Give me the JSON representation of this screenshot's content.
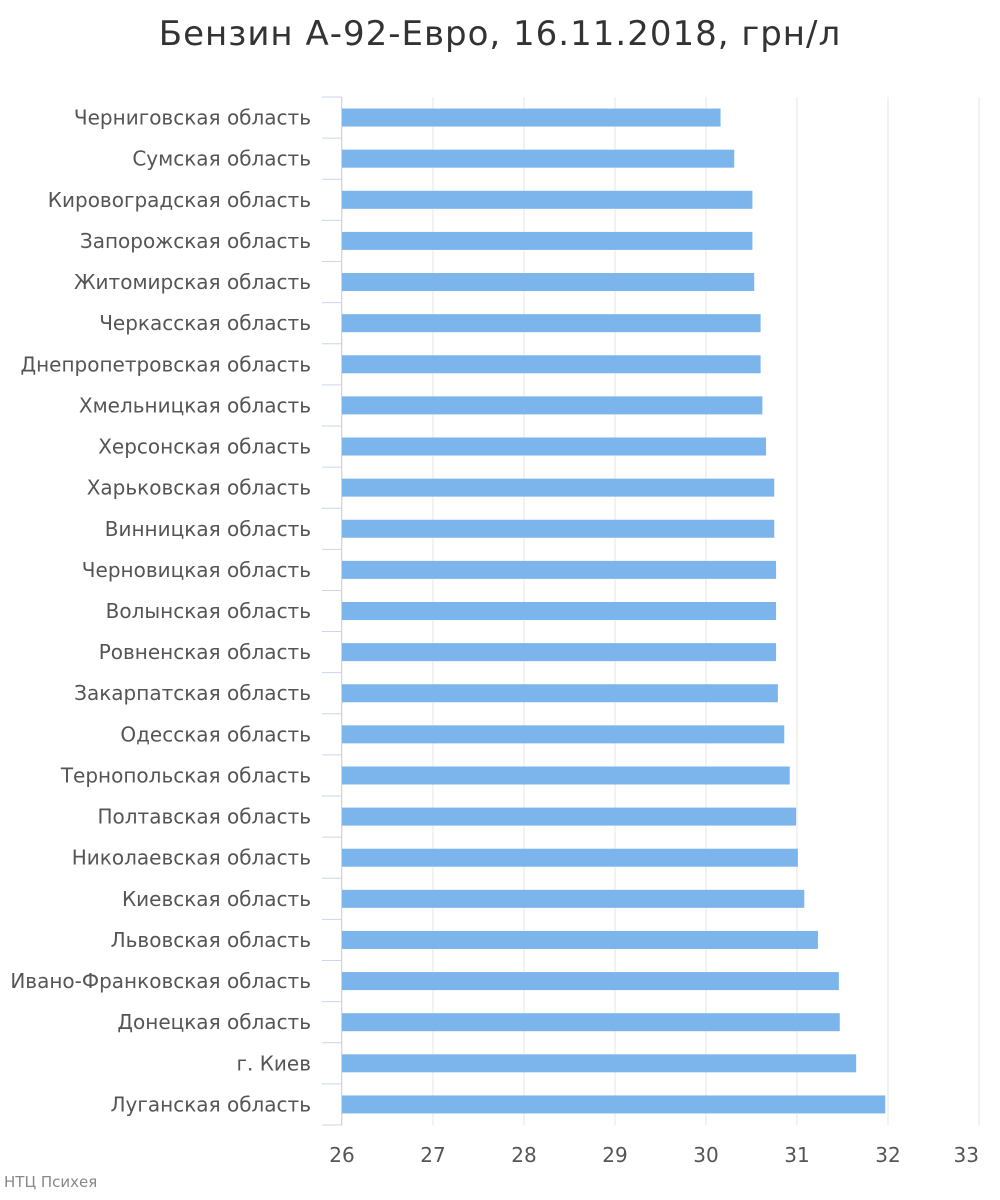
{
  "chart_data": {
    "type": "bar",
    "orientation": "horizontal",
    "title": "Бензин А-92-Евро, 16.11.2018, грн/л",
    "xlabel": "",
    "ylabel": "",
    "xlim": [
      26,
      33
    ],
    "ticks": [
      "26",
      "27",
      "28",
      "29",
      "30",
      "31",
      "32",
      "33"
    ],
    "grid": true,
    "legend": "none",
    "categories": [
      "Черниговская область",
      "Сумская область",
      "Кировоградская область",
      "Запорожская область",
      "Житомирская область",
      "Черкасская область",
      "Днепропетровская область",
      "Хмельницкая область",
      "Херсонская область",
      "Харьковская область",
      "Винницкая область",
      "Черновицкая область",
      "Волынская область",
      "Ровненская область",
      "Закарпатская область",
      "Одесская область",
      "Тернопольская область",
      "Полтавская область",
      "Николаевская область",
      "Киевская область",
      "Львовская область",
      "Ивано-Франковская область",
      "Донецкая область",
      "г. Киев",
      "Луганская область"
    ],
    "values": [
      30.16,
      30.31,
      30.51,
      30.51,
      30.53,
      30.6,
      30.6,
      30.62,
      30.66,
      30.75,
      30.75,
      30.77,
      30.77,
      30.77,
      30.79,
      30.86,
      30.92,
      30.99,
      31.01,
      31.08,
      31.23,
      31.46,
      31.47,
      31.65,
      31.97
    ],
    "colors": {
      "bar": "#7cb5ec",
      "grid": "#e6e6e6",
      "axis": "#ccd6eb",
      "text": "#555555"
    }
  },
  "credits": "НТЦ Психея"
}
